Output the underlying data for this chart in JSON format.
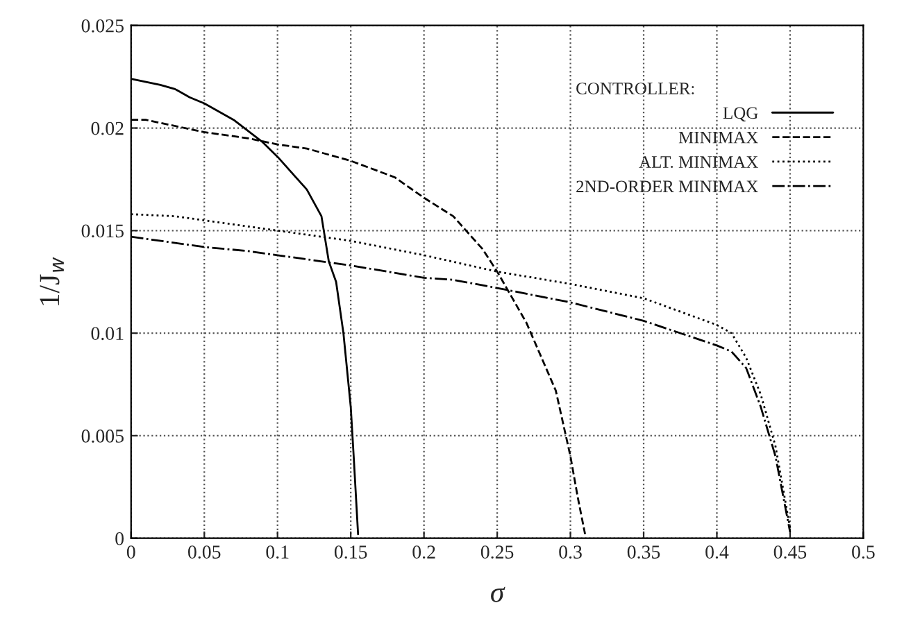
{
  "chart_data": {
    "type": "line",
    "xlabel": "σ",
    "ylabel": "1/J$_{w}$",
    "legend_title": "CONTROLLER:",
    "legend": "top right",
    "grid": true,
    "xlim": [
      0,
      0.5
    ],
    "xticks": [
      0,
      0.05,
      0.1,
      0.15,
      0.2,
      0.25,
      0.3,
      0.35,
      0.4,
      0.45,
      0.5
    ],
    "ylim": [
      0,
      0.025
    ],
    "yticks": [
      0,
      0.005,
      0.01,
      0.015,
      0.02,
      0.025
    ],
    "series": [
      {
        "name": "LQG",
        "color": "#000000",
        "line_style": "solid",
        "x": [
          0,
          0.02,
          0.03,
          0.04,
          0.05,
          0.07,
          0.09,
          0.1,
          0.12,
          0.13,
          0.135,
          0.14,
          0.145,
          0.15,
          0.152,
          0.155
        ],
        "values": [
          0.0224,
          0.0221,
          0.0219,
          0.0215,
          0.0212,
          0.0204,
          0.0193,
          0.0186,
          0.017,
          0.0157,
          0.0135,
          0.0125,
          0.01,
          0.0064,
          0.004,
          0.0002
        ]
      },
      {
        "name": "MINIMAX",
        "color": "#000000",
        "line_style": "dashed",
        "x": [
          0,
          0.01,
          0.05,
          0.08,
          0.1,
          0.12,
          0.15,
          0.18,
          0.2,
          0.22,
          0.24,
          0.25,
          0.27,
          0.29,
          0.3,
          0.305,
          0.31
        ],
        "values": [
          0.0204,
          0.0204,
          0.0198,
          0.0195,
          0.0192,
          0.019,
          0.0184,
          0.0176,
          0.0166,
          0.0157,
          0.0141,
          0.013,
          0.0105,
          0.0072,
          0.004,
          0.002,
          0.0002
        ]
      },
      {
        "name": "ALT. MINIMAX",
        "color": "#000000",
        "line_style": "dotted",
        "x": [
          0,
          0.03,
          0.07,
          0.1,
          0.15,
          0.2,
          0.25,
          0.3,
          0.35,
          0.4,
          0.41,
          0.42,
          0.43,
          0.44,
          0.45
        ],
        "values": [
          0.0158,
          0.0157,
          0.0153,
          0.015,
          0.0145,
          0.0138,
          0.013,
          0.0124,
          0.0117,
          0.0104,
          0.01,
          0.0088,
          0.007,
          0.0045,
          0.0005
        ]
      },
      {
        "name": "2ND-ORDER MINIMAX",
        "color": "#000000",
        "line_style": "dashdot",
        "x": [
          0,
          0.05,
          0.08,
          0.1,
          0.15,
          0.2,
          0.22,
          0.25,
          0.3,
          0.35,
          0.4,
          0.41,
          0.42,
          0.43,
          0.44,
          0.45
        ],
        "values": [
          0.0147,
          0.0142,
          0.014,
          0.0138,
          0.0133,
          0.0127,
          0.0126,
          0.0122,
          0.0115,
          0.0106,
          0.0094,
          0.0091,
          0.0083,
          0.0064,
          0.004,
          0.0003
        ]
      }
    ]
  }
}
